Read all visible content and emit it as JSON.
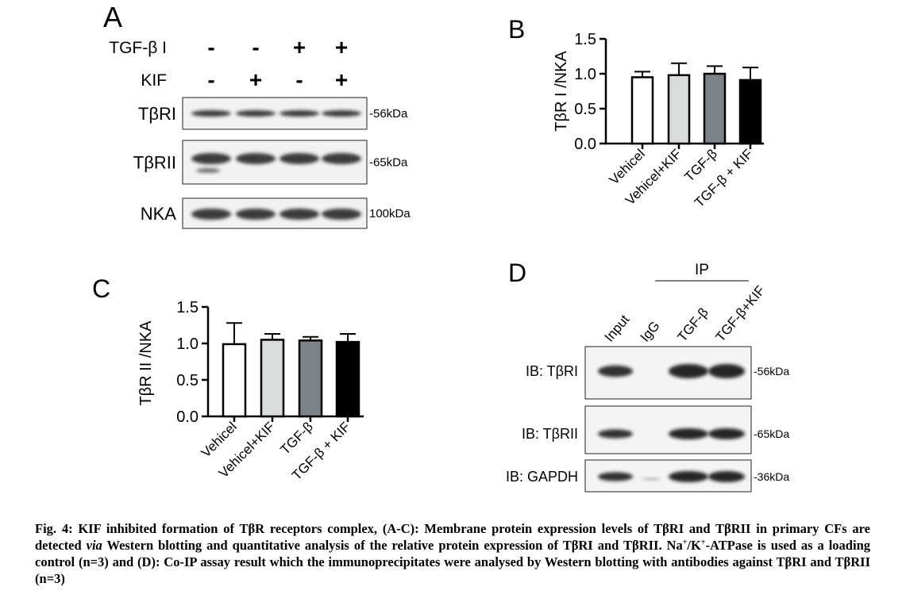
{
  "panel_a": {
    "label": "A",
    "treatments": [
      {
        "name": "TGF-β I",
        "signs": [
          "-",
          "-",
          "+",
          "+"
        ]
      },
      {
        "name": "KIF",
        "signs": [
          "-",
          "+",
          "-",
          "+"
        ]
      }
    ],
    "rows": [
      {
        "name": "TβRI",
        "size": "-56kDa"
      },
      {
        "name": "TβRII",
        "size": "-65kDa"
      },
      {
        "name": "NKA",
        "size": "100kDa"
      }
    ]
  },
  "panel_d": {
    "label": "D",
    "group": "IP",
    "lanes": [
      "Input",
      "IgG",
      "TGF-β",
      "TGF-β+KIF"
    ],
    "rows": [
      {
        "name": "IB: TβRI",
        "size": "-56kDa"
      },
      {
        "name": "IB: TβRII",
        "size": "-65kDa"
      },
      {
        "name": "IB: GAPDH",
        "size": "-36kDa"
      }
    ]
  },
  "chart_data": [
    {
      "type": "bar",
      "title": "B",
      "y_label": "TβR I /NKA",
      "categories": [
        "Vehicel",
        "Vehicel+KIF",
        "TGF-β",
        "TGF-β + KIF"
      ],
      "values": [
        0.95,
        0.98,
        1.0,
        0.91
      ],
      "errors": [
        0.08,
        0.17,
        0.11,
        0.18
      ],
      "colors": [
        "#ffffff",
        "#d9dcdc",
        "#7d8489",
        "#000000"
      ],
      "ylim": [
        0,
        1.5
      ],
      "yticks": [
        {
          "value": 0,
          "label": "0.0"
        },
        0.5,
        {
          "value": 1,
          "label": "1.0"
        },
        1.5
      ]
    },
    {
      "type": "bar",
      "title": "C",
      "y_label": "TβR II /NKA",
      "categories": [
        "Vehicel",
        "Vehicel+KIF",
        "TGF-β",
        "TGF-β + KIF"
      ],
      "values": [
        0.99,
        1.05,
        1.04,
        1.02
      ],
      "errors": [
        0.29,
        0.08,
        0.05,
        0.11
      ],
      "colors": [
        "#ffffff",
        "#d9dcdc",
        "#7d8489",
        "#000000"
      ],
      "ylim": [
        0,
        1.5
      ],
      "yticks": [
        {
          "value": 0,
          "label": "0.0"
        },
        0.5,
        {
          "value": 1,
          "label": "1.0"
        },
        1.5
      ]
    }
  ],
  "caption": [
    "Fig. 4: KIF inhibited formation of TβR receptors complex, (A-C): Membrane protein expression levels of TβRI and TβRII in primary CFs are detected ",
    "via",
    " Western blotting and quantitative analysis of the relative protein expression of TβRI and TβRII. Na",
    "+",
    "/K",
    "+",
    "-ATPase is used as a loading control (n=3) and (D): Co-IP assay result which the immunoprecipitates were analysed by Western blotting with antibodies against TβRI and TβRII (n=3)"
  ]
}
